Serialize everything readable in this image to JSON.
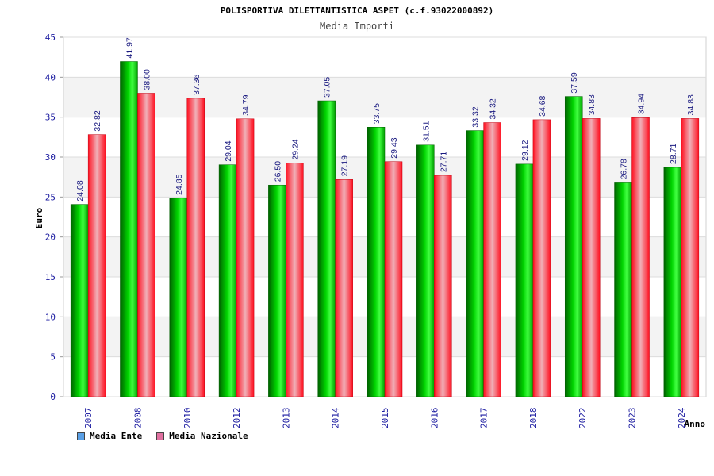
{
  "chart_data": {
    "type": "bar",
    "title": "POLISPORTIVA DILETTANTISTICA ASPET (c.f.93022000892)",
    "subtitle": "Media Importi",
    "xlabel": "Anno",
    "ylabel": "Euro",
    "ylim": [
      0,
      45
    ],
    "yticks": [
      0,
      5,
      10,
      15,
      20,
      25,
      30,
      35,
      40,
      45
    ],
    "categories": [
      "2007",
      "2008",
      "2010",
      "2012",
      "2013",
      "2014",
      "2015",
      "2016",
      "2017",
      "2018",
      "2022",
      "2023",
      "2024"
    ],
    "series": [
      {
        "name": "Media Ente",
        "color": "#00c000",
        "values": [
          24.08,
          41.97,
          24.85,
          29.04,
          26.5,
          37.05,
          33.75,
          31.51,
          33.32,
          29.12,
          37.59,
          26.78,
          28.71
        ],
        "labels": [
          "24.08",
          "41.97",
          "24.85",
          "29.04",
          "26.50",
          "37.05",
          "33.75",
          "31.51",
          "33.32",
          "29.12",
          "37.59",
          "26.78",
          "28.71"
        ]
      },
      {
        "name": "Media Nazionale",
        "color": "#ff1a2e",
        "values": [
          32.82,
          38.0,
          37.36,
          34.79,
          29.24,
          27.19,
          29.43,
          27.71,
          34.32,
          34.68,
          34.83,
          34.94,
          34.83
        ],
        "labels": [
          "32.82",
          "38.00",
          "37.36",
          "34.79",
          "29.24",
          "27.19",
          "29.43",
          "27.71",
          "34.32",
          "34.68",
          "34.83",
          "34.94",
          "34.83"
        ]
      }
    ],
    "legend": {
      "placement": "bottom-left",
      "items": [
        {
          "label": "Media Ente",
          "color": "#5aa0e6"
        },
        {
          "label": "Media Nazionale",
          "color": "#e070a0"
        }
      ]
    },
    "grid": true
  }
}
